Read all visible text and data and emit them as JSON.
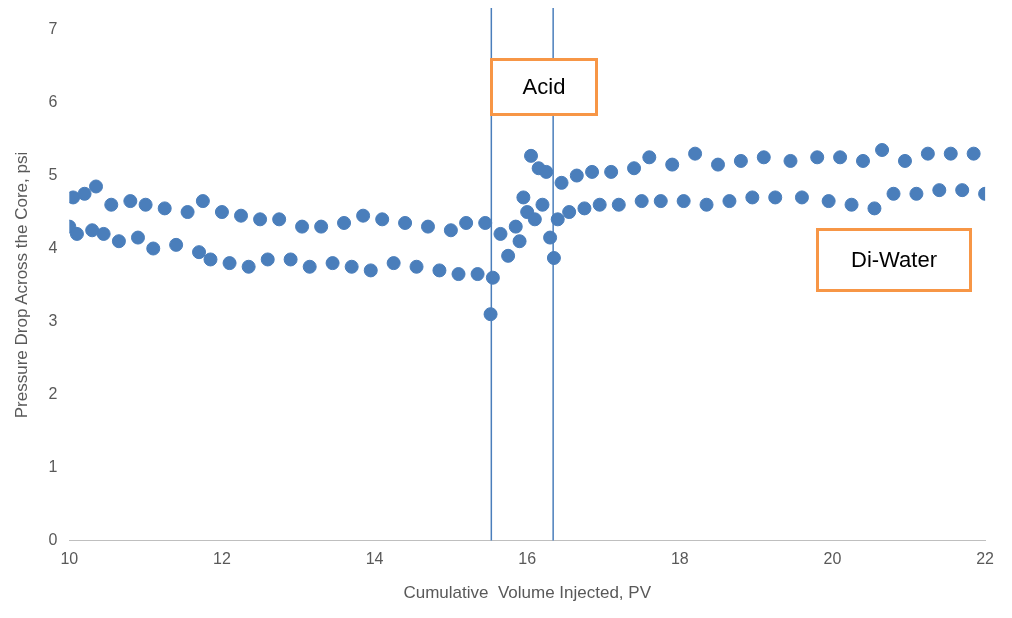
{
  "chart_data": {
    "type": "scatter",
    "xlabel": "Cumulative  Volume Injected, PV",
    "ylabel": "Pressure Drop Across the Core, psi",
    "xlim": [
      10,
      22
    ],
    "xticks": [
      10,
      12,
      14,
      16,
      18,
      20,
      22
    ],
    "ylim": [
      0,
      7
    ],
    "yticks": [
      0,
      1,
      2,
      3,
      4,
      5,
      6,
      7
    ],
    "grid": false,
    "legend": false,
    "marker": "circle",
    "series": [
      {
        "color": "#4a7ebb",
        "x": [
          10.0,
          10.05,
          10.1,
          10.2,
          10.3,
          10.35,
          10.45,
          10.55,
          10.65,
          10.8,
          10.9,
          11.0,
          11.1,
          11.25,
          11.4,
          11.55,
          11.7,
          11.75,
          11.85,
          12.0,
          12.1,
          12.25,
          12.35,
          12.5,
          12.6,
          12.75,
          12.9,
          13.05,
          13.15,
          13.3,
          13.45,
          13.6,
          13.7,
          13.85,
          13.95,
          14.1,
          14.25,
          14.4,
          14.55,
          14.7,
          14.85,
          15.0,
          15.1,
          15.2,
          15.35,
          15.45,
          15.52,
          15.55,
          15.65,
          15.75,
          15.85,
          15.9,
          15.95,
          16.0,
          16.05,
          16.1,
          16.15,
          16.2,
          16.25,
          16.3,
          16.35,
          16.4,
          16.45,
          16.55,
          16.65,
          16.75,
          16.85,
          16.95,
          17.1,
          17.2,
          17.4,
          17.5,
          17.6,
          17.75,
          17.9,
          18.05,
          18.2,
          18.35,
          18.5,
          18.65,
          18.8,
          18.95,
          19.1,
          19.25,
          19.45,
          19.6,
          19.8,
          19.95,
          20.1,
          20.25,
          20.4,
          20.55,
          20.65,
          20.8,
          20.95,
          21.1,
          21.25,
          21.4,
          21.55,
          21.7,
          21.85,
          22.0
        ],
        "values": [
          4.3,
          4.7,
          4.2,
          4.75,
          4.25,
          4.85,
          4.2,
          4.6,
          4.1,
          4.65,
          4.15,
          4.6,
          4.0,
          4.55,
          4.05,
          4.5,
          3.95,
          4.65,
          3.85,
          4.5,
          3.8,
          4.45,
          3.75,
          4.4,
          3.85,
          4.4,
          3.85,
          4.3,
          3.75,
          4.3,
          3.8,
          4.35,
          3.75,
          4.45,
          3.7,
          4.4,
          3.8,
          4.35,
          3.75,
          4.3,
          3.7,
          4.25,
          3.65,
          4.35,
          3.65,
          4.35,
          3.1,
          3.6,
          4.2,
          3.9,
          4.3,
          4.1,
          4.7,
          4.5,
          5.27,
          4.4,
          5.1,
          4.6,
          5.05,
          4.15,
          3.87,
          4.4,
          4.9,
          4.5,
          5.0,
          4.55,
          5.05,
          4.6,
          5.05,
          4.6,
          5.1,
          4.65,
          5.25,
          4.65,
          5.15,
          4.65,
          5.3,
          4.6,
          5.15,
          4.65,
          5.2,
          4.7,
          5.25,
          4.7,
          5.2,
          4.7,
          5.25,
          4.65,
          5.25,
          4.6,
          5.2,
          4.55,
          5.35,
          4.75,
          5.2,
          4.75,
          5.3,
          4.8,
          5.3,
          4.8,
          5.3,
          4.75
        ]
      }
    ],
    "ref_lines": [
      {
        "axis": "x",
        "value": 15.53,
        "color": "#4a7ebb"
      },
      {
        "axis": "x",
        "value": 16.34,
        "color": "#4a7ebb"
      }
    ],
    "annotations": [
      "Acid",
      "Di-Water"
    ]
  }
}
